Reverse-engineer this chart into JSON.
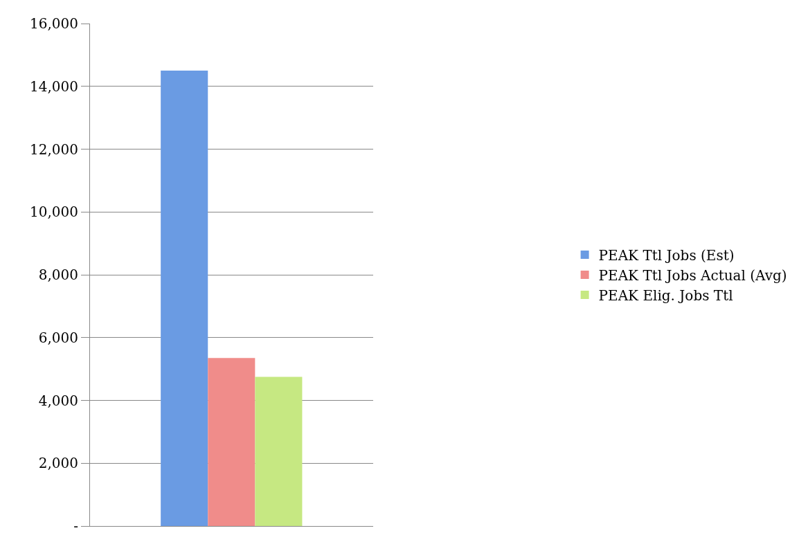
{
  "chart_data": {
    "type": "bar",
    "categories": [
      null
    ],
    "series": [
      {
        "name": "PEAK Ttl Jobs (Est)",
        "color": "#6a9be3",
        "values": [
          14500
        ]
      },
      {
        "name": "PEAK Ttl Jobs Actual (Avg)",
        "color": "#f08c8a",
        "values": [
          5350
        ]
      },
      {
        "name": "PEAK Elig. Jobs Ttl",
        "color": "#c6e882",
        "values": [
          4750
        ]
      }
    ],
    "ylim": [
      0,
      16000
    ],
    "yticks": [
      {
        "value": 0,
        "label": "-"
      },
      {
        "value": 2000,
        "label": "2,000"
      },
      {
        "value": 4000,
        "label": "4,000"
      },
      {
        "value": 6000,
        "label": "6,000"
      },
      {
        "value": 8000,
        "label": "8,000"
      },
      {
        "value": 10000,
        "label": "10,000"
      },
      {
        "value": 12000,
        "label": "12,000"
      },
      {
        "value": 14000,
        "label": "14,000"
      },
      {
        "value": 16000,
        "label": "16,000"
      }
    ],
    "grid": "y",
    "legend": "right"
  }
}
